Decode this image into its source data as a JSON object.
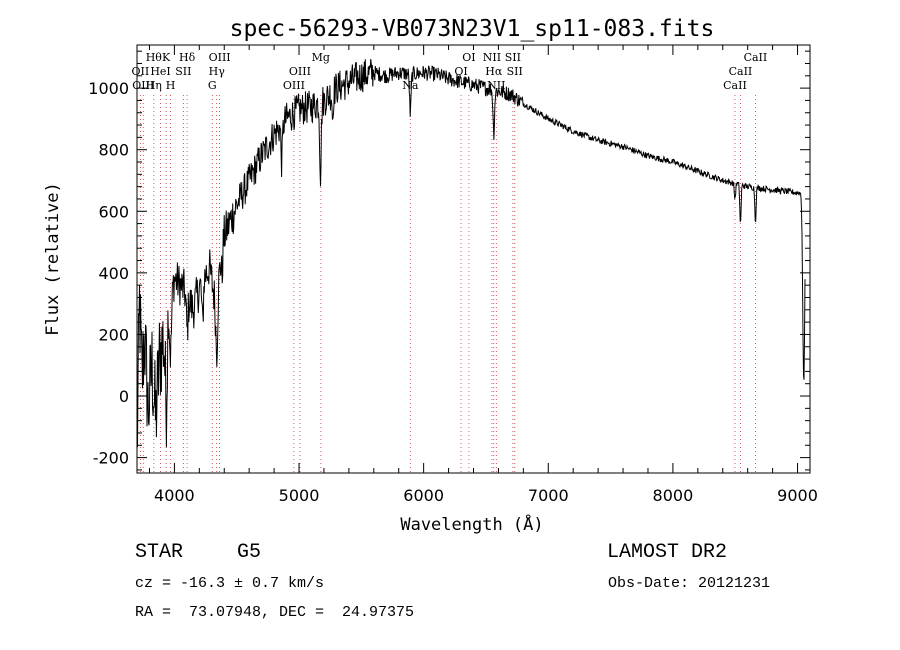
{
  "chart_data": {
    "type": "line",
    "title": "spec-56293-VB073N23V1_sp11-083.fits",
    "xlabel": "Wavelength (Å)",
    "ylabel": "Flux (relative)",
    "xlim": [
      3700,
      9100
    ],
    "ylim": [
      -250,
      1140
    ],
    "x_ticks": [
      4000,
      5000,
      6000,
      7000,
      8000,
      9000
    ],
    "y_ticks": [
      -200,
      0,
      200,
      400,
      600,
      800,
      1000
    ],
    "grid": false,
    "colors": {
      "spectrum": "#000000",
      "line_marker": "#cc3333",
      "axes": "#000000"
    },
    "spectrum_anchors": [
      {
        "x": 3700,
        "y": -200
      },
      {
        "x": 3720,
        "y": 300
      },
      {
        "x": 3740,
        "y": 50
      },
      {
        "x": 3760,
        "y": 200
      },
      {
        "x": 3790,
        "y": -50
      },
      {
        "x": 3820,
        "y": 100
      },
      {
        "x": 3850,
        "y": -80
      },
      {
        "x": 3880,
        "y": 120
      },
      {
        "x": 3920,
        "y": 200
      },
      {
        "x": 3960,
        "y": 320
      },
      {
        "x": 4000,
        "y": 380
      },
      {
        "x": 4050,
        "y": 360
      },
      {
        "x": 4100,
        "y": 330
      },
      {
        "x": 4150,
        "y": 280
      },
      {
        "x": 4200,
        "y": 350
      },
      {
        "x": 4280,
        "y": 420
      },
      {
        "x": 4330,
        "y": 300
      },
      {
        "x": 4400,
        "y": 520
      },
      {
        "x": 4500,
        "y": 620
      },
      {
        "x": 4600,
        "y": 700
      },
      {
        "x": 4700,
        "y": 780
      },
      {
        "x": 4800,
        "y": 850
      },
      {
        "x": 4900,
        "y": 900
      },
      {
        "x": 5000,
        "y": 930
      },
      {
        "x": 5100,
        "y": 940
      },
      {
        "x": 5200,
        "y": 960
      },
      {
        "x": 5300,
        "y": 1000
      },
      {
        "x": 5400,
        "y": 1020
      },
      {
        "x": 5500,
        "y": 1040
      },
      {
        "x": 5600,
        "y": 1050
      },
      {
        "x": 5700,
        "y": 1040
      },
      {
        "x": 5800,
        "y": 1050
      },
      {
        "x": 5900,
        "y": 1045
      },
      {
        "x": 6000,
        "y": 1050
      },
      {
        "x": 6100,
        "y": 1045
      },
      {
        "x": 6200,
        "y": 1030
      },
      {
        "x": 6300,
        "y": 1020
      },
      {
        "x": 6400,
        "y": 1010
      },
      {
        "x": 6500,
        "y": 1000
      },
      {
        "x": 6600,
        "y": 990
      },
      {
        "x": 6700,
        "y": 980
      },
      {
        "x": 6800,
        "y": 950
      },
      {
        "x": 7000,
        "y": 900
      },
      {
        "x": 7200,
        "y": 860
      },
      {
        "x": 7400,
        "y": 830
      },
      {
        "x": 7600,
        "y": 810
      },
      {
        "x": 7800,
        "y": 780
      },
      {
        "x": 8000,
        "y": 760
      },
      {
        "x": 8200,
        "y": 730
      },
      {
        "x": 8400,
        "y": 700
      },
      {
        "x": 8600,
        "y": 680
      },
      {
        "x": 8800,
        "y": 670
      },
      {
        "x": 9000,
        "y": 660
      }
    ],
    "absorption_features": [
      {
        "x": 3934,
        "depth": 260,
        "width": 8
      },
      {
        "x": 3969,
        "depth": 200,
        "width": 8
      },
      {
        "x": 4102,
        "depth": 120,
        "width": 7
      },
      {
        "x": 4226,
        "depth": 140,
        "width": 6
      },
      {
        "x": 4340,
        "depth": 180,
        "width": 7
      },
      {
        "x": 4383,
        "depth": 80,
        "width": 4
      },
      {
        "x": 4861,
        "depth": 120,
        "width": 6
      },
      {
        "x": 5172,
        "depth": 230,
        "width": 6
      },
      {
        "x": 5270,
        "depth": 90,
        "width": 4
      },
      {
        "x": 5893,
        "depth": 130,
        "width": 6
      },
      {
        "x": 6563,
        "depth": 140,
        "width": 6
      },
      {
        "x": 8498,
        "depth": 50,
        "width": 5
      },
      {
        "x": 8542,
        "depth": 130,
        "width": 5
      },
      {
        "x": 8662,
        "depth": 110,
        "width": 5
      },
      {
        "x": 9050,
        "depth": 620,
        "width": 8
      }
    ],
    "noise_segments": [
      {
        "x0": 3700,
        "x1": 3950,
        "amp": 170
      },
      {
        "x0": 3950,
        "x1": 4500,
        "amp": 70
      },
      {
        "x0": 4500,
        "x1": 5600,
        "amp": 55
      },
      {
        "x0": 5600,
        "x1": 6800,
        "amp": 25
      },
      {
        "x0": 6800,
        "x1": 9100,
        "amp": 10
      }
    ],
    "line_labels": [
      {
        "x": 3835,
        "row": 0,
        "text": "Hθ"
      },
      {
        "x": 3889,
        "row": 1,
        "text": "HeI"
      },
      {
        "x": 3934,
        "row": 0,
        "text": "K"
      },
      {
        "x": 3969,
        "row": 2,
        "text": "H"
      },
      {
        "x": 4072,
        "row": 1,
        "text": "SII"
      },
      {
        "x": 4102,
        "row": 0,
        "text": "Hδ"
      },
      {
        "x": 3727,
        "row": 1,
        "text": "OII"
      },
      {
        "x": 3750,
        "row": 2,
        "text": "OIII"
      },
      {
        "x": 3835,
        "row": 2,
        "text": "Hη"
      },
      {
        "x": 4340,
        "row": 1,
        "text": "Hγ"
      },
      {
        "x": 4363,
        "row": 0,
        "text": "OIII"
      },
      {
        "x": 4304,
        "row": 2,
        "text": "G"
      },
      {
        "x": 4959,
        "row": 2,
        "text": "OIII"
      },
      {
        "x": 5007,
        "row": 1,
        "text": "OIII"
      },
      {
        "x": 5175,
        "row": 0,
        "text": "Mg"
      },
      {
        "x": 5893,
        "row": 2,
        "text": "Na"
      },
      {
        "x": 6300,
        "row": 1,
        "text": "OI"
      },
      {
        "x": 6363,
        "row": 0,
        "text": "OI"
      },
      {
        "x": 6548,
        "row": 0,
        "text": "NII"
      },
      {
        "x": 6563,
        "row": 1,
        "text": "Hα"
      },
      {
        "x": 6583,
        "row": 2,
        "text": "NII"
      },
      {
        "x": 6716,
        "row": 0,
        "text": "SII"
      },
      {
        "x": 6731,
        "row": 1,
        "text": "SII"
      },
      {
        "x": 8498,
        "row": 2,
        "text": "CaII"
      },
      {
        "x": 8542,
        "row": 1,
        "text": "CaII"
      },
      {
        "x": 8662,
        "row": 0,
        "text": "CaII"
      }
    ]
  },
  "info": {
    "class": "STAR",
    "subclass": "G5",
    "survey": "LAMOST DR2",
    "redshift": "cz = -16.3 ± 0.7 km/s",
    "obs_date": "Obs-Date: 20121231",
    "coords": "RA =  73.07948, DEC =  24.97375"
  }
}
